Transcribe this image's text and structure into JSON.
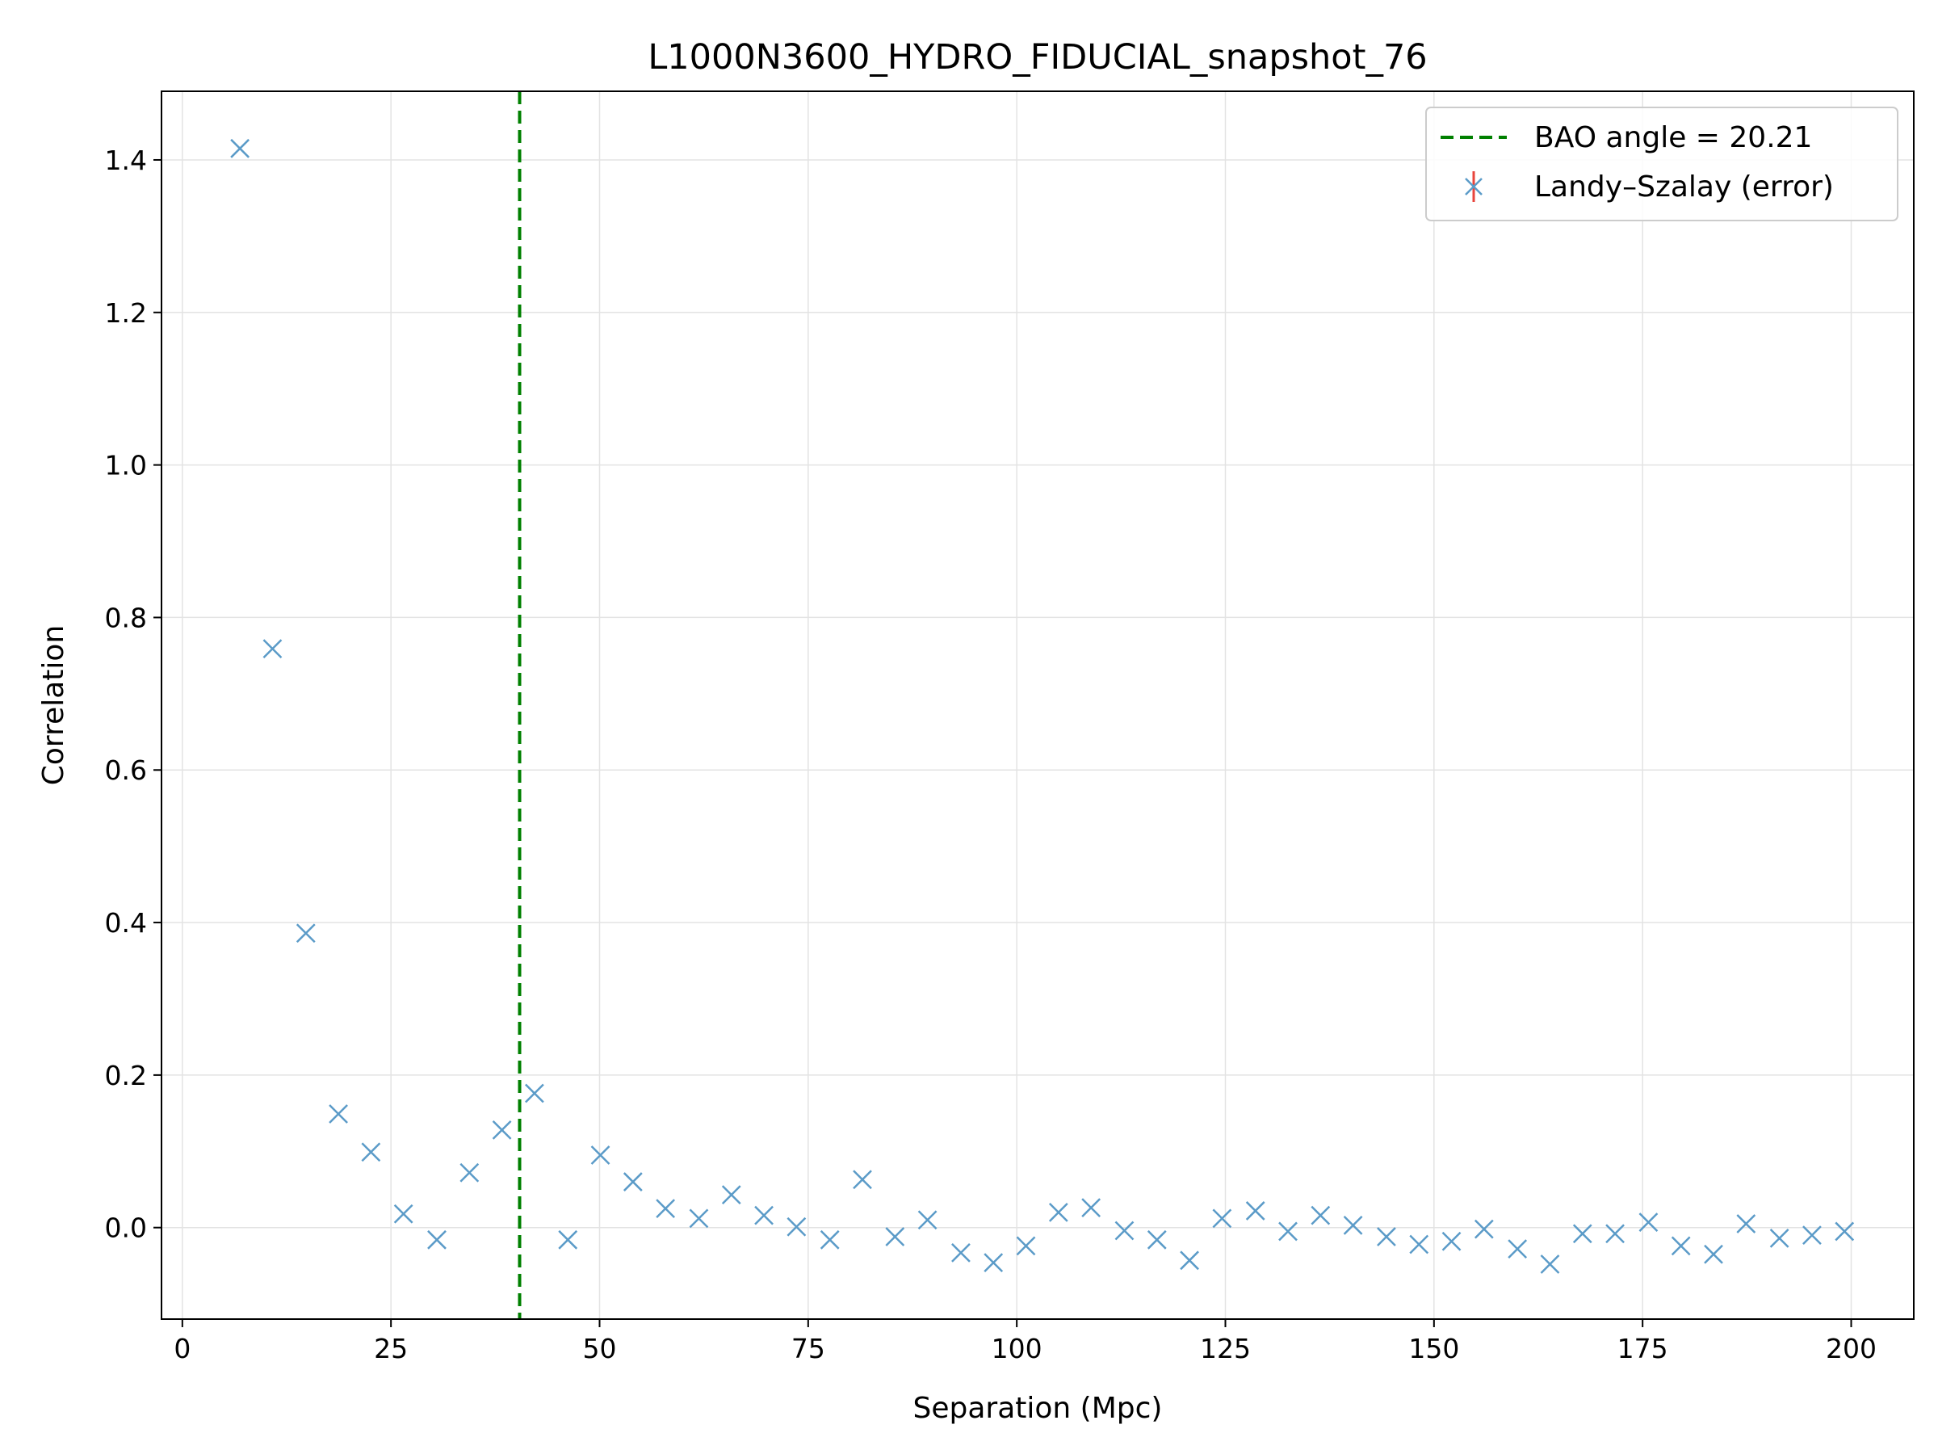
{
  "chart_data": {
    "type": "scatter",
    "title": "L1000N3600_HYDRO_FIDUCIAL_snapshot_76",
    "xlabel": "Separation (Mpc)",
    "ylabel": "Correlation",
    "xlim": [
      -2.5,
      207.5
    ],
    "ylim": [
      -0.12,
      1.49
    ],
    "xticks": [
      0,
      25,
      50,
      75,
      100,
      125,
      150,
      175,
      200
    ],
    "yticks": [
      0.0,
      0.2,
      0.4,
      0.6,
      0.8,
      1.0,
      1.2,
      1.4
    ],
    "xtick_labels": [
      "0",
      "25",
      "50",
      "75",
      "100",
      "125",
      "150",
      "175",
      "200"
    ],
    "ytick_labels": [
      "0.0",
      "0.2",
      "0.4",
      "0.6",
      "0.8",
      "1.0",
      "1.2",
      "1.4"
    ],
    "grid": true,
    "legend_position": "top-right",
    "vline": {
      "x": 40.42,
      "label": "BAO angle = 20.21",
      "color": "#008000",
      "style": "dashed"
    },
    "series": [
      {
        "name": "Landy–Szalay (error)",
        "marker": "x",
        "color": "#5b9bc8",
        "error_color": "#e8453c",
        "x": [
          6.9,
          10.8,
          14.8,
          18.7,
          22.6,
          26.5,
          30.5,
          34.4,
          38.3,
          42.2,
          46.2,
          50.1,
          54.0,
          57.9,
          61.9,
          65.8,
          69.7,
          73.6,
          77.6,
          81.5,
          85.4,
          89.3,
          93.3,
          97.2,
          101.1,
          105.0,
          108.9,
          112.9,
          116.8,
          120.7,
          124.6,
          128.6,
          132.5,
          136.4,
          140.3,
          144.3,
          148.2,
          152.1,
          156.0,
          160.0,
          163.9,
          167.8,
          171.7,
          175.7,
          179.6,
          183.5,
          187.4,
          191.4,
          195.3,
          199.2
        ],
        "y": [
          1.415,
          0.759,
          0.386,
          0.149,
          0.099,
          0.018,
          -0.016,
          0.072,
          0.128,
          0.176,
          -0.016,
          0.095,
          0.06,
          0.025,
          0.012,
          0.043,
          0.016,
          0.001,
          -0.016,
          0.063,
          -0.012,
          0.01,
          -0.033,
          -0.046,
          -0.024,
          0.02,
          0.026,
          -0.004,
          -0.016,
          -0.043,
          0.012,
          0.022,
          -0.005,
          0.016,
          0.003,
          -0.012,
          -0.022,
          -0.018,
          -0.002,
          -0.028,
          -0.048,
          -0.008,
          -0.008,
          0.007,
          -0.024,
          -0.035,
          0.005,
          -0.014,
          -0.01,
          -0.005
        ]
      }
    ]
  }
}
